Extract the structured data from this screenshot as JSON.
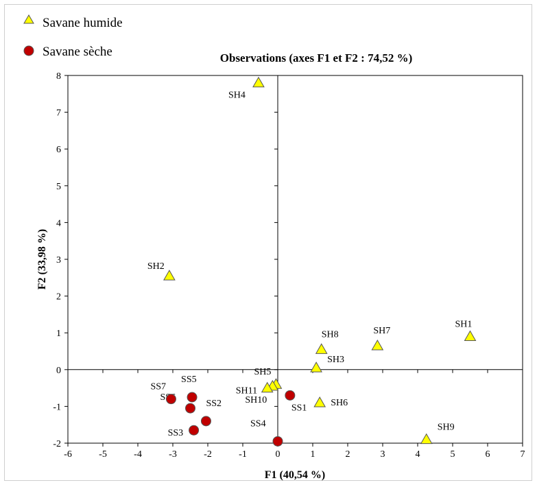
{
  "chart_data": {
    "type": "scatter",
    "title": "Observations (axes F1 et F2 : 74,52 %)",
    "xlabel": "F1 (40,54 %)",
    "ylabel": "F2 (33,98 %)",
    "xlim": [
      -6,
      7
    ],
    "ylim": [
      -2,
      8
    ],
    "xticks": [
      -6,
      -5,
      -4,
      -3,
      -2,
      -1,
      0,
      1,
      2,
      3,
      4,
      5,
      6,
      7
    ],
    "yticks": [
      -2,
      -1,
      0,
      1,
      2,
      3,
      4,
      5,
      6,
      7,
      8
    ],
    "grid": false,
    "legend": "top-left",
    "series": [
      {
        "name": "Savane humide",
        "marker": "triangle",
        "color": "#ffff00",
        "points": [
          {
            "label": "SH1",
            "x": 5.5,
            "y": 0.9
          },
          {
            "label": "SH2",
            "x": -3.1,
            "y": 2.55
          },
          {
            "label": "SH3",
            "x": 1.1,
            "y": 0.05
          },
          {
            "label": "SH4",
            "x": -0.55,
            "y": 7.8
          },
          {
            "label": "SH5",
            "x": -0.05,
            "y": -0.4
          },
          {
            "label": "SH6",
            "x": 1.2,
            "y": -0.9
          },
          {
            "label": "SH7",
            "x": 2.85,
            "y": 0.65
          },
          {
            "label": "SH8",
            "x": 1.25,
            "y": 0.55
          },
          {
            "label": "SH9",
            "x": 4.25,
            "y": -1.9
          },
          {
            "label": "SH10",
            "x": -0.15,
            "y": -0.45
          },
          {
            "label": "SH11",
            "x": -0.3,
            "y": -0.5
          }
        ]
      },
      {
        "name": "Savane sèche",
        "marker": "circle",
        "color": "#c00000",
        "points": [
          {
            "label": "SS1",
            "x": 0.35,
            "y": -0.7
          },
          {
            "label": "SS2",
            "x": -2.05,
            "y": -1.4
          },
          {
            "label": "SS3",
            "x": -2.4,
            "y": -1.65
          },
          {
            "label": "SS4",
            "x": 0.0,
            "y": -1.95
          },
          {
            "label": "SS5",
            "x": -2.45,
            "y": -0.75
          },
          {
            "label": "SS6",
            "x": -2.5,
            "y": -1.05
          },
          {
            "label": "SS7",
            "x": -3.05,
            "y": -0.8
          }
        ]
      }
    ]
  }
}
